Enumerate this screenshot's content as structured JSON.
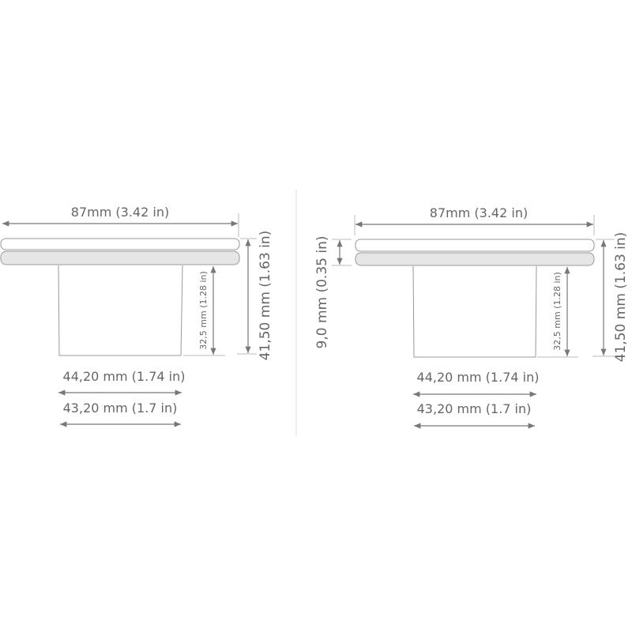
{
  "left_view": {
    "overall_width": "87mm (3.42 in)",
    "body_height": "32,5 mm (1.28 in)",
    "overall_height": "41,50 mm (1.63 in)",
    "body_top_width": "44,20 mm (1.74 in)",
    "body_bottom_width": "43,20 mm (1.7 in)"
  },
  "right_view": {
    "overall_width": "87mm (3.42 in)",
    "plate_height": "9,0 mm (0.35 in)",
    "body_height": "32,5 mm (1.28 in)",
    "overall_height": "41,50 mm (1.63 in)",
    "body_top_width": "44,20 mm (1.74 in)",
    "body_bottom_width": "43,20 mm (1.7 in)"
  },
  "colors": {
    "line": "#777777",
    "plate_fill": "#e6e6e6"
  }
}
